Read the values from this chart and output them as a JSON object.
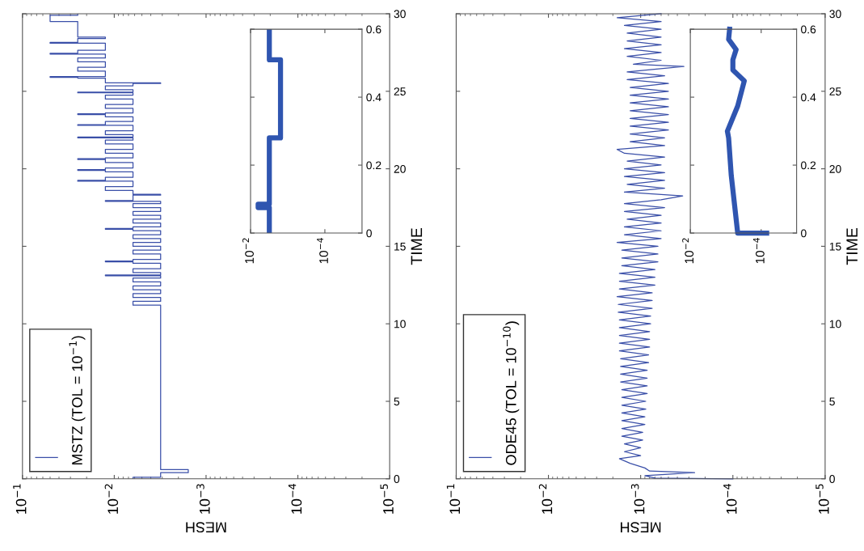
{
  "chart_data": [
    {
      "type": "step",
      "orientation": "horizontal",
      "xlabel": "MESH",
      "ylabel": "TIME",
      "log": "x",
      "legend": "bottom left",
      "grid": false,
      "xlim": [
        0.1,
        1e-05
      ],
      "xticks": [
        {
          "value": 0.1,
          "label": "10$^{−1}$"
        },
        {
          "value": 0.01,
          "label": "10$^{−2}$"
        },
        {
          "value": 0.001,
          "label": "10$^{−3}$"
        },
        {
          "value": 0.0001,
          "label": "10$^{−4}$"
        },
        {
          "value": 1e-05,
          "label": "10$^{−5}$"
        }
      ],
      "ylim": [
        0,
        30
      ],
      "yticks": [
        0,
        5,
        10,
        15,
        20,
        25,
        30
      ],
      "series": [
        {
          "name": "MSTZ (TOL = 10$^{−1}$)",
          "color": "#3a4fa8",
          "x": [
            0,
            0.1,
            0.4,
            0.6,
            11.2,
            11.45,
            11.7,
            11.95,
            12.2,
            12.45,
            12.7,
            12.95,
            13.1,
            13.15,
            13.3,
            13.55,
            13.9,
            14.0,
            14.05,
            14.15,
            14.5,
            14.75,
            15.0,
            15.25,
            15.5,
            15.75,
            16.0,
            16.1,
            16.15,
            16.25,
            16.5,
            16.75,
            17.0,
            17.25,
            17.5,
            17.75,
            17.9,
            17.95,
            18.3,
            18.35,
            18.6,
            18.85,
            19.2,
            19.25,
            19.45,
            19.8,
            19.9,
            19.95,
            20.05,
            20.4,
            20.6,
            20.65,
            20.7,
            21.0,
            21.25,
            21.6,
            21.85,
            22.0,
            22.05,
            22.2,
            22.45,
            22.8,
            22.85,
            23.05,
            23.35,
            23.5,
            23.55,
            23.6,
            23.9,
            24.15,
            24.5,
            24.75,
            24.9,
            24.95,
            25.1,
            25.35,
            25.5,
            25.55,
            25.85,
            25.9,
            25.95,
            26.3,
            26.55,
            26.9,
            27.15,
            27.4,
            27.45,
            27.65,
            28.1,
            28.15,
            28.4,
            28.5,
            29.5,
            29.9,
            30
          ],
          "values": [
            0.00625,
            0.003125,
            0.0015625,
            0.003125,
            0.00625,
            0.003125,
            0.00625,
            0.003125,
            0.00625,
            0.003125,
            0.00625,
            0.003125,
            0.0125,
            0.003125,
            0.00625,
            0.003125,
            0.00625,
            0.0125,
            0.00625,
            0.003125,
            0.00625,
            0.003125,
            0.00625,
            0.003125,
            0.00625,
            0.003125,
            0.00625,
            0.0125,
            0.00625,
            0.003125,
            0.00625,
            0.003125,
            0.00625,
            0.003125,
            0.00625,
            0.003125,
            0.0125,
            0.00625,
            0.003125,
            0.00625,
            0.0125,
            0.00625,
            0.025,
            0.0125,
            0.00625,
            0.0125,
            0.025,
            0.0125,
            0.00625,
            0.0125,
            0.025,
            0.0125,
            0.00625,
            0.0125,
            0.00625,
            0.0125,
            0.00625,
            0.025,
            0.00625,
            0.0125,
            0.00625,
            0.025,
            0.0125,
            0.00625,
            0.0125,
            0.025,
            0.0125,
            0.00625,
            0.0125,
            0.00625,
            0.0125,
            0.00625,
            0.025,
            0.00625,
            0.0125,
            0.00625,
            0.003125,
            0.0125,
            0.025,
            0.05,
            0.0125,
            0.025,
            0.0125,
            0.025,
            0.0125,
            0.05,
            0.025,
            0.0125,
            0.05,
            0.025,
            0.0125,
            0.025,
            0.05,
            0.025,
            0.025
          ]
        }
      ]
    },
    {
      "type": "step",
      "orientation": "horizontal",
      "log": "x",
      "grid": false,
      "xlim": [
        0.01,
        1e-05
      ],
      "xticks": [
        {
          "value": 0.01,
          "label": "10$^{−2}$"
        },
        {
          "value": 0.0001,
          "label": "10$^{−4}$"
        }
      ],
      "ylim": [
        0,
        0.6
      ],
      "yticks": [
        0,
        0.2,
        0.4,
        0.6
      ],
      "series": [
        {
          "color": "#2f55b0",
          "x": [
            0,
            0.075,
            0.085,
            0.28,
            0.51,
            0.6
          ],
          "values": [
            0.003125,
            0.00625,
            0.003125,
            0.0015625,
            0.003125,
            0.003125
          ]
        }
      ]
    },
    {
      "type": "line",
      "orientation": "horizontal",
      "xlabel": "MESH",
      "ylabel": "TIME",
      "log": "x",
      "legend": "bottom left",
      "grid": false,
      "xlim": [
        0.1,
        1e-05
      ],
      "xticks": [
        {
          "value": 0.1,
          "label": "10$^{−1}$"
        },
        {
          "value": 0.01,
          "label": "10$^{−2}$"
        },
        {
          "value": 0.001,
          "label": "10$^{−3}$"
        },
        {
          "value": 0.0001,
          "label": "10$^{−4}$"
        },
        {
          "value": 1e-05,
          "label": "10$^{−5}$"
        }
      ],
      "ylim": [
        0,
        30
      ],
      "yticks": [
        0,
        5,
        10,
        15,
        20,
        25,
        30
      ],
      "series": [
        {
          "name": "ODE45 (TOL = 10$^{−10}$)",
          "color": "#3a4fa8",
          "x": [
            0,
            0.05,
            0.2,
            0.4,
            0.5,
            0.7,
            1.0,
            1.3,
            1.5,
            1.75,
            2.0,
            2.25,
            2.5,
            2.75,
            3.0,
            3.25,
            3.5,
            3.75,
            4.0,
            4.25,
            4.5,
            4.75,
            5.0,
            5.25,
            5.5,
            5.75,
            6.0,
            6.25,
            6.5,
            6.75,
            7.0,
            7.25,
            7.5,
            7.75,
            8.0,
            8.25,
            8.5,
            8.75,
            9.0,
            9.25,
            9.5,
            9.75,
            10.0,
            10.25,
            10.5,
            10.75,
            11.0,
            11.25,
            11.5,
            11.75,
            12.0,
            12.25,
            12.5,
            12.75,
            13.0,
            13.25,
            13.5,
            13.75,
            14.0,
            14.25,
            14.5,
            14.75,
            15.0,
            15.25,
            15.5,
            15.75,
            16.0,
            16.25,
            16.5,
            16.75,
            17.0,
            17.25,
            17.5,
            17.75,
            18.0,
            18.25,
            18.5,
            18.75,
            19.0,
            19.25,
            19.5,
            19.75,
            20.0,
            20.25,
            20.5,
            20.75,
            21.0,
            21.25,
            21.5,
            21.75,
            22.0,
            22.25,
            22.5,
            22.75,
            23.0,
            23.25,
            23.5,
            23.75,
            24.0,
            24.25,
            24.5,
            24.75,
            25.0,
            25.25,
            25.5,
            25.75,
            26.0,
            26.25,
            26.6,
            26.75,
            27.0,
            27.25,
            27.5,
            27.75,
            28.0,
            28.25,
            28.5,
            28.75,
            29.0,
            29.25,
            29.5,
            29.75,
            30.0
          ],
          "values": [
            0.0001,
            0.0007,
            0.0009,
            0.00026,
            0.0008,
            0.0009,
            0.0013,
            0.0017,
            0.001,
            0.0015,
            0.001,
            0.0015,
            0.00095,
            0.0016,
            0.00095,
            0.0016,
            0.0009,
            0.0016,
            0.0009,
            0.0016,
            0.00088,
            0.0016,
            0.00088,
            0.0016,
            0.00085,
            0.0016,
            0.00085,
            0.00165,
            0.00085,
            0.00165,
            0.00085,
            0.00165,
            0.00082,
            0.00165,
            0.00082,
            0.0017,
            0.0008,
            0.0017,
            0.0008,
            0.0017,
            0.0008,
            0.0017,
            0.00078,
            0.0017,
            0.00078,
            0.00175,
            0.00075,
            0.00175,
            0.00075,
            0.0018,
            0.00075,
            0.0017,
            0.0007,
            0.0017,
            0.0007,
            0.0017,
            0.0007,
            0.0016,
            0.00065,
            0.0016,
            0.00065,
            0.0016,
            0.00065,
            0.0018,
            0.0006,
            0.0015,
            0.0006,
            0.0015,
            0.0006,
            0.0014,
            0.0006,
            0.0015,
            0.00055,
            0.0015,
            0.0006,
            0.00035,
            0.0015,
            0.00055,
            0.0014,
            0.00055,
            0.0015,
            0.00055,
            0.0015,
            0.0006,
            0.0014,
            0.00055,
            0.0015,
            0.0018,
            0.00055,
            0.0013,
            0.00055,
            0.0013,
            0.0005,
            0.0013,
            0.0005,
            0.0013,
            0.0005,
            0.0013,
            0.0005,
            0.0013,
            0.0005,
            0.0013,
            0.0005,
            0.0013,
            0.0005,
            0.0014,
            0.00055,
            0.0014,
            0.00034,
            0.0012,
            0.0006,
            0.0014,
            0.0006,
            0.0015,
            0.0006,
            0.0014,
            0.0006,
            0.0014,
            0.0006,
            0.0015,
            0.0006,
            0.0018,
            0.0006
          ]
        }
      ]
    },
    {
      "type": "line",
      "orientation": "horizontal",
      "log": "x",
      "grid": false,
      "xlim": [
        0.01,
        1e-05
      ],
      "xticks": [
        {
          "value": 0.01,
          "label": "10$^{−2}$"
        },
        {
          "value": 0.0001,
          "label": "10$^{−4}$"
        }
      ],
      "ylim": [
        0,
        0.6
      ],
      "yticks": [
        0,
        0.2,
        0.4,
        0.6
      ],
      "series": [
        {
          "color": "#2f55b0",
          "x": [
            0,
            0,
            0.17,
            0.28,
            0.3,
            0.374,
            0.448,
            0.48,
            0.51,
            0.54,
            0.57,
            0.6
          ],
          "values": [
            7e-05,
            0.00046,
            0.0007,
            0.00083,
            0.0009,
            0.00046,
            0.0003,
            0.00063,
            0.00063,
            0.00051,
            0.00083,
            0.00078
          ]
        }
      ]
    }
  ]
}
